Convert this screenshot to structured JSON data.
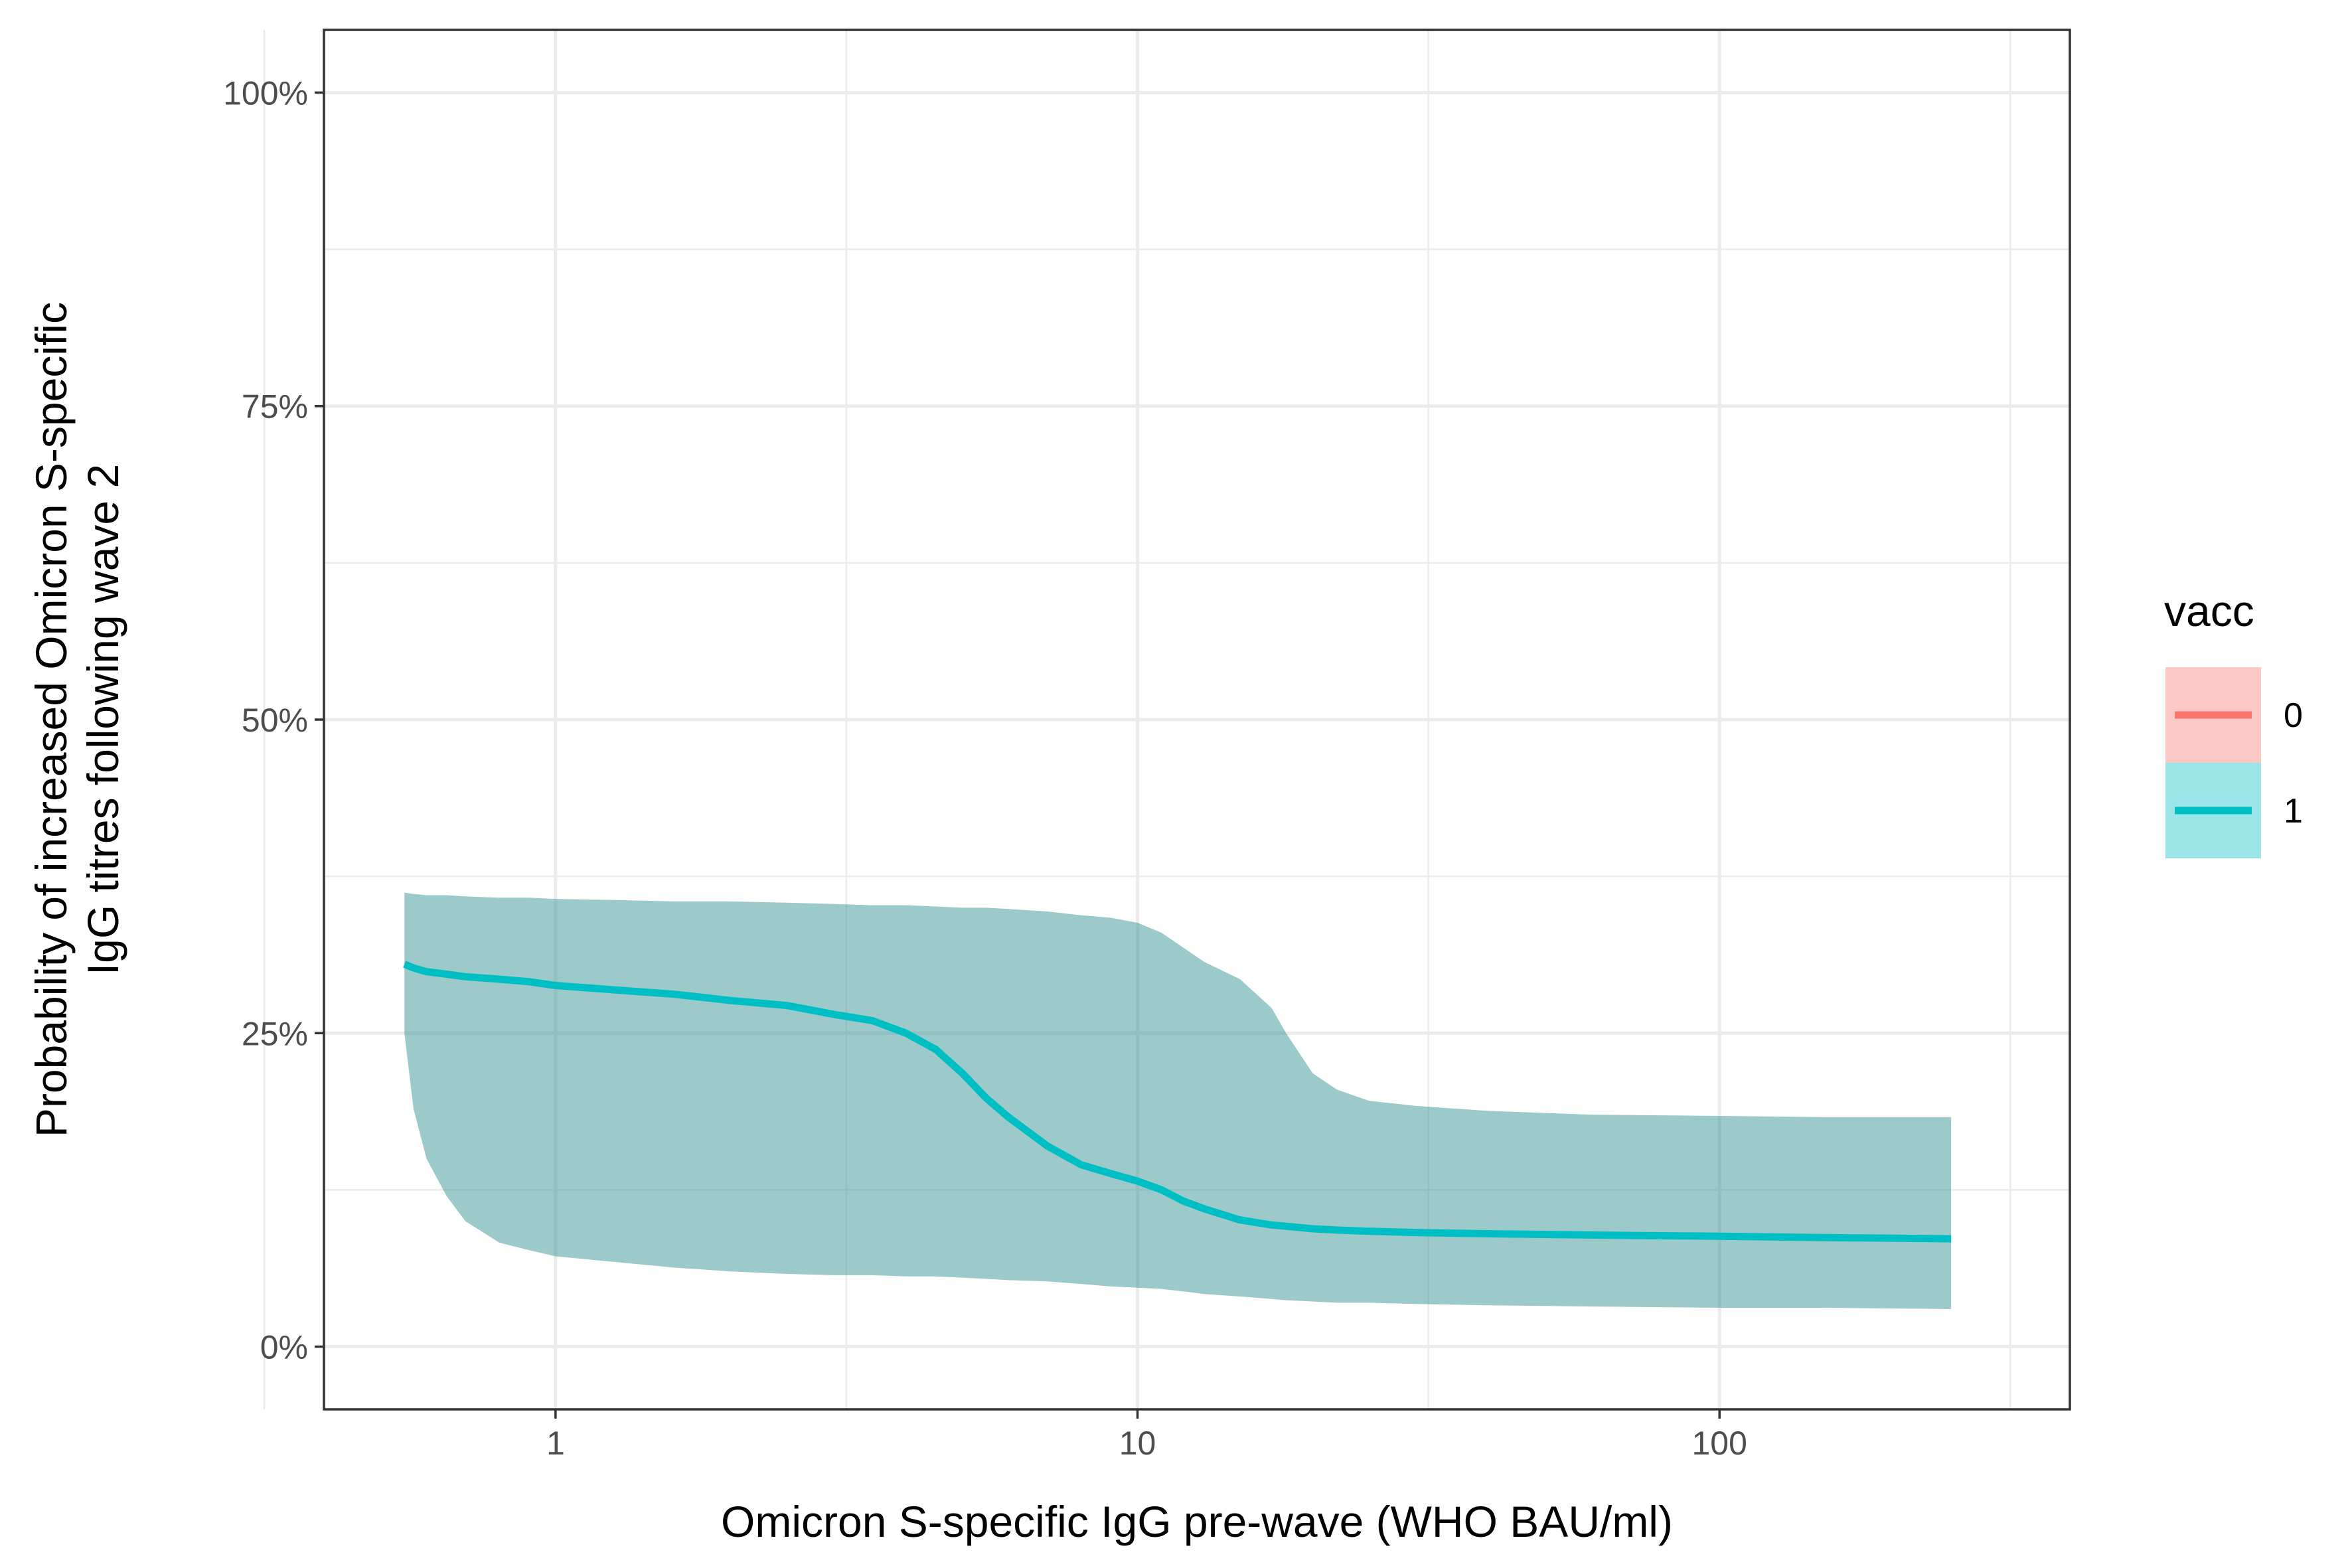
{
  "chart_data": {
    "type": "line",
    "title": "",
    "xlabel": "Omicron S-specific IgG pre-wave (WHO BAU/ml)",
    "ylabel_lines": [
      "Probability of increased Omicron S-specific",
      "IgG titres following wave 2"
    ],
    "x_scale": "log10",
    "xlim": [
      0.4,
      400
    ],
    "ylim": [
      -0.05,
      1.05
    ],
    "x_ticks": [
      1,
      10,
      100
    ],
    "x_tick_labels": [
      "1",
      "10",
      "100"
    ],
    "x_minor_ticks": [
      0.316,
      3.16,
      31.6,
      316
    ],
    "y_ticks": [
      0,
      0.25,
      0.5,
      0.75,
      1.0
    ],
    "y_tick_labels": [
      "0%",
      "25%",
      "50%",
      "75%",
      "100%"
    ],
    "y_minor_ticks": [
      0.125,
      0.375,
      0.625,
      0.875
    ],
    "grid": true,
    "legend": {
      "title": "vacc",
      "position": "right",
      "entries": [
        {
          "label": "0",
          "line_color": "#F8766D",
          "fill_color": "#F8766D"
        },
        {
          "label": "1",
          "line_color": "#00BFC4",
          "fill_color": "#00BFC4"
        }
      ]
    },
    "series": [
      {
        "name": "1",
        "color": "#00BFC4",
        "ribbon_color": "#3a9396",
        "points": [
          {
            "x": 0.55,
            "y": 0.305,
            "lo": 0.25,
            "hi": 0.362
          },
          {
            "x": 0.57,
            "y": 0.302,
            "lo": 0.19,
            "hi": 0.361
          },
          {
            "x": 0.6,
            "y": 0.299,
            "lo": 0.15,
            "hi": 0.36
          },
          {
            "x": 0.65,
            "y": 0.297,
            "lo": 0.12,
            "hi": 0.36
          },
          {
            "x": 0.7,
            "y": 0.295,
            "lo": 0.1,
            "hi": 0.359
          },
          {
            "x": 0.8,
            "y": 0.293,
            "lo": 0.083,
            "hi": 0.358
          },
          {
            "x": 0.9,
            "y": 0.291,
            "lo": 0.077,
            "hi": 0.358
          },
          {
            "x": 1.0,
            "y": 0.288,
            "lo": 0.072,
            "hi": 0.357
          },
          {
            "x": 1.3,
            "y": 0.284,
            "lo": 0.067,
            "hi": 0.356
          },
          {
            "x": 1.6,
            "y": 0.281,
            "lo": 0.063,
            "hi": 0.355
          },
          {
            "x": 2.0,
            "y": 0.276,
            "lo": 0.06,
            "hi": 0.355
          },
          {
            "x": 2.5,
            "y": 0.272,
            "lo": 0.058,
            "hi": 0.354
          },
          {
            "x": 3.0,
            "y": 0.265,
            "lo": 0.057,
            "hi": 0.353
          },
          {
            "x": 3.5,
            "y": 0.26,
            "lo": 0.057,
            "hi": 0.352
          },
          {
            "x": 4.0,
            "y": 0.25,
            "lo": 0.056,
            "hi": 0.352
          },
          {
            "x": 4.5,
            "y": 0.237,
            "lo": 0.056,
            "hi": 0.351
          },
          {
            "x": 5.0,
            "y": 0.218,
            "lo": 0.055,
            "hi": 0.35
          },
          {
            "x": 5.5,
            "y": 0.198,
            "lo": 0.054,
            "hi": 0.35
          },
          {
            "x": 6.0,
            "y": 0.183,
            "lo": 0.053,
            "hi": 0.349
          },
          {
            "x": 7.0,
            "y": 0.16,
            "lo": 0.052,
            "hi": 0.347
          },
          {
            "x": 8.0,
            "y": 0.145,
            "lo": 0.05,
            "hi": 0.344
          },
          {
            "x": 9.0,
            "y": 0.138,
            "lo": 0.048,
            "hi": 0.342
          },
          {
            "x": 10.0,
            "y": 0.132,
            "lo": 0.047,
            "hi": 0.338
          },
          {
            "x": 11.0,
            "y": 0.125,
            "lo": 0.046,
            "hi": 0.33
          },
          {
            "x": 12.0,
            "y": 0.116,
            "lo": 0.044,
            "hi": 0.318
          },
          {
            "x": 13.0,
            "y": 0.11,
            "lo": 0.042,
            "hi": 0.307
          },
          {
            "x": 15.0,
            "y": 0.101,
            "lo": 0.04,
            "hi": 0.293
          },
          {
            "x": 17.0,
            "y": 0.097,
            "lo": 0.038,
            "hi": 0.27
          },
          {
            "x": 18.0,
            "y": 0.096,
            "lo": 0.037,
            "hi": 0.25
          },
          {
            "x": 20.0,
            "y": 0.094,
            "lo": 0.036,
            "hi": 0.218
          },
          {
            "x": 22.0,
            "y": 0.093,
            "lo": 0.035,
            "hi": 0.205
          },
          {
            "x": 25.0,
            "y": 0.092,
            "lo": 0.035,
            "hi": 0.196
          },
          {
            "x": 30.0,
            "y": 0.091,
            "lo": 0.034,
            "hi": 0.192
          },
          {
            "x": 40.0,
            "y": 0.09,
            "lo": 0.033,
            "hi": 0.188
          },
          {
            "x": 60.0,
            "y": 0.089,
            "lo": 0.032,
            "hi": 0.185
          },
          {
            "x": 100.0,
            "y": 0.088,
            "lo": 0.031,
            "hi": 0.184
          },
          {
            "x": 150.0,
            "y": 0.087,
            "lo": 0.031,
            "hi": 0.183
          },
          {
            "x": 250.0,
            "y": 0.086,
            "lo": 0.03,
            "hi": 0.183
          }
        ]
      }
    ]
  }
}
